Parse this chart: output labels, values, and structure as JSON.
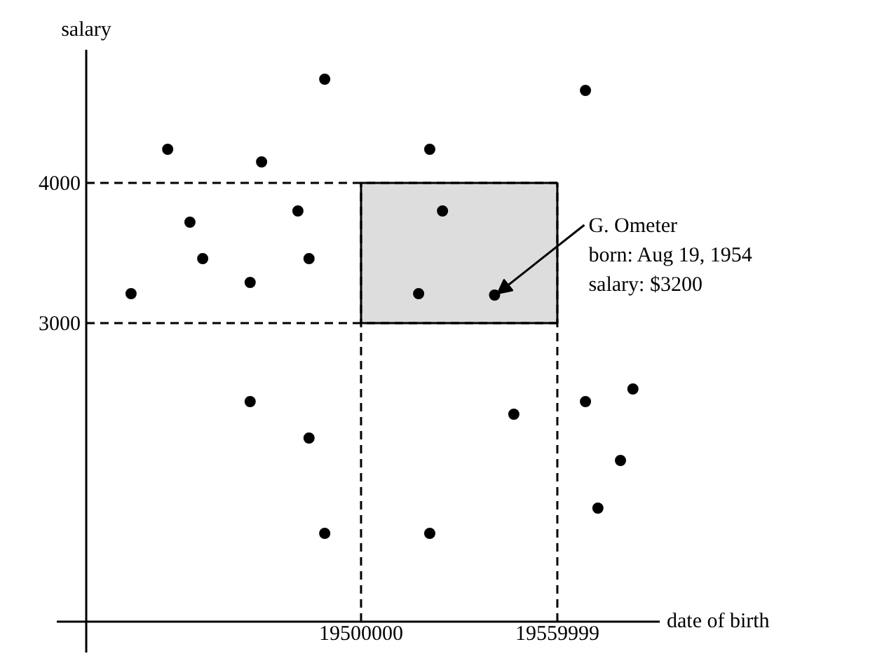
{
  "chart_data": {
    "type": "scatter",
    "xlabel": "date of birth",
    "ylabel": "salary",
    "x": [
      19488900,
      19440900,
      19521000,
      19568600,
      19469600,
      19447700,
      19480700,
      19524900,
      19451600,
      19484100,
      19466100,
      19429700,
      19517600,
      19540819,
      19466100,
      19546700,
      19568600,
      19583100,
      19484100,
      19579300,
      19572400,
      19488900,
      19521000
    ],
    "values": [
      4740,
      4240,
      4240,
      4660,
      4150,
      3720,
      3800,
      3800,
      3460,
      3460,
      3290,
      3210,
      3210,
      3200,
      2440,
      2350,
      2440,
      2530,
      2180,
      2020,
      1680,
      1500,
      1500
    ],
    "color": "#000000",
    "marker": "circle",
    "grid": false,
    "xlim": [
      19416000,
      19591300
    ],
    "ylim": [
      870,
      4950
    ],
    "xticks": [
      19500000,
      19559999
    ],
    "yticks": [
      3000,
      4000
    ],
    "bands": [
      {
        "axis": "x",
        "from": 19500000,
        "to": 19559999,
        "color": "#dddddd"
      }
    ],
    "ref_lines": [
      {
        "axis": "x",
        "value": 19500000,
        "line_style": "dashed"
      },
      {
        "axis": "x",
        "value": 19559999,
        "line_style": "dashed"
      },
      {
        "axis": "y",
        "value": 3000,
        "line_style": "dashed"
      },
      {
        "axis": "y",
        "value": 4000,
        "line_style": "dashed"
      }
    ],
    "annotations": [
      {
        "text": "G. Ometer\nborn: Aug 19, 1954\nsalary: $3200",
        "x": 19540819,
        "y": 3200
      }
    ]
  }
}
